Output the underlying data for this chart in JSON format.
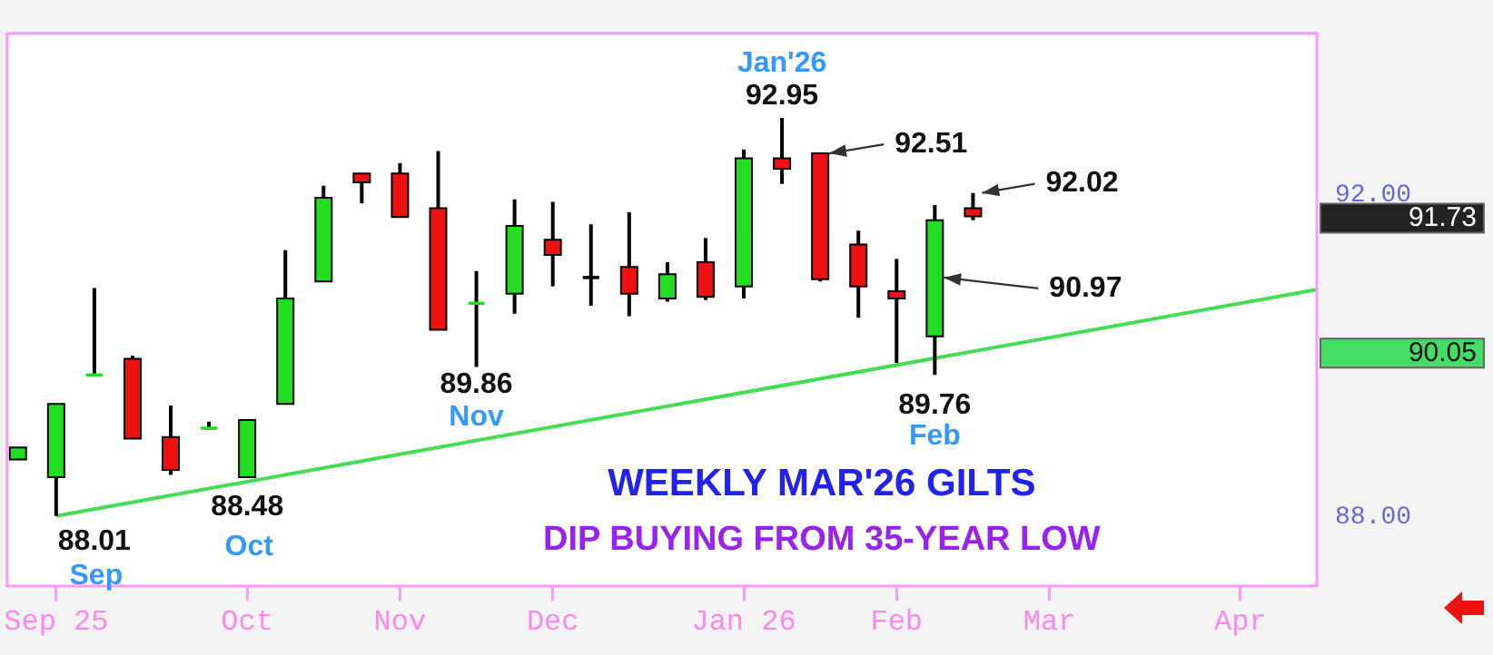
{
  "chart_data": {
    "type": "candlestick",
    "title": "WEEKLY MAR'26 GILTS",
    "subtitle": "DIP BUYING FROM 35-YEAR LOW",
    "x": [
      "2025-08-25",
      "2025-09-01",
      "2025-09-08",
      "2025-09-15",
      "2025-09-22",
      "2025-09-29",
      "2025-10-06",
      "2025-10-13",
      "2025-10-20",
      "2025-10-27",
      "2025-11-03",
      "2025-11-10",
      "2025-11-17",
      "2025-11-24",
      "2025-12-01",
      "2025-12-08",
      "2025-12-15",
      "2025-12-22",
      "2025-12-29",
      "2026-01-05",
      "2026-01-12",
      "2026-01-19",
      "2026-01-26",
      "2026-02-02",
      "2026-02-09",
      "2026-02-16"
    ],
    "ohlc": [
      [
        88.71,
        88.86,
        88.71,
        88.86
      ],
      [
        88.49,
        89.4,
        88.01,
        89.4
      ],
      [
        89.74,
        90.84,
        89.74,
        89.78
      ],
      [
        89.96,
        90.0,
        88.97,
        88.97
      ],
      [
        88.99,
        89.38,
        88.52,
        88.58
      ],
      [
        89.08,
        89.18,
        89.08,
        89.12
      ],
      [
        88.49,
        89.2,
        88.48,
        89.2
      ],
      [
        89.4,
        91.31,
        89.4,
        90.71
      ],
      [
        90.92,
        92.11,
        90.92,
        91.96
      ],
      [
        92.26,
        92.26,
        91.89,
        92.15
      ],
      [
        92.26,
        92.39,
        91.72,
        91.72
      ],
      [
        91.83,
        92.54,
        90.32,
        90.32
      ],
      [
        90.63,
        91.05,
        89.86,
        90.67
      ],
      [
        90.77,
        91.94,
        90.52,
        91.61
      ],
      [
        91.44,
        91.91,
        90.86,
        91.25
      ],
      [
        90.95,
        91.63,
        90.62,
        90.99
      ],
      [
        91.1,
        91.78,
        90.49,
        90.77
      ],
      [
        90.71,
        91.16,
        90.67,
        91.01
      ],
      [
        91.16,
        91.46,
        90.69,
        90.73
      ],
      [
        90.86,
        92.56,
        90.71,
        92.45
      ],
      [
        92.45,
        92.95,
        92.13,
        92.32
      ],
      [
        92.51,
        92.51,
        90.92,
        90.95
      ],
      [
        91.38,
        91.55,
        90.47,
        90.86
      ],
      [
        90.8,
        91.2,
        89.91,
        90.71
      ],
      [
        90.24,
        91.87,
        89.76,
        91.68
      ],
      [
        91.83,
        92.02,
        91.68,
        91.73
      ]
    ],
    "colors": [
      "#22dd22",
      "#22dd22",
      "#22dd22",
      "#ee1111",
      "#ee1111",
      "#22dd22",
      "#22dd22",
      "#22dd22",
      "#22dd22",
      "#ee1111",
      "#ee1111",
      "#ee1111",
      "#22dd22",
      "#22dd22",
      "#ee1111",
      "#000000",
      "#ee1111",
      "#22dd22",
      "#ee1111",
      "#22dd22",
      "#ee1111",
      "#ee1111",
      "#ee1111",
      "#ee1111",
      "#22dd22",
      "#ee1111"
    ],
    "series": [
      {
        "type": "line",
        "color": "#44dd55",
        "x": [
          "2025-09-01",
          "2026-04-20"
        ],
        "values": [
          88.01,
          90.82
        ]
      }
    ],
    "xlim": [
      "2025-08-23",
      "2026-04-20"
    ],
    "xticks": [
      {
        "value": "2025-09-01",
        "label": "Sep 25"
      },
      {
        "value": "2025-10-06",
        "label": "Oct"
      },
      {
        "value": "2025-11-03",
        "label": "Nov"
      },
      {
        "value": "2025-12-01",
        "label": "Dec"
      },
      {
        "value": "2026-01-05",
        "label": "Jan 26"
      },
      {
        "value": "2026-02-02",
        "label": "Feb"
      },
      {
        "value": "2026-03-02",
        "label": "Mar"
      },
      {
        "value": "2026-04-06",
        "label": "Apr"
      }
    ],
    "ylim": [
      87.14,
      94.0
    ],
    "yticks": [
      {
        "value": 88,
        "label": "88.00"
      },
      {
        "value": 92,
        "label": "92.00"
      }
    ],
    "annotations": [
      {
        "text": "88.01",
        "x": "2025-09-01",
        "y": 88.01
      },
      {
        "text": "Sep",
        "x": "2025-09-01",
        "y": 88.01
      },
      {
        "text": "88.48",
        "x": "2025-10-06",
        "y": 88.48
      },
      {
        "text": "Oct",
        "x": "2025-10-06",
        "y": 88.48
      },
      {
        "text": "89.86",
        "x": "2025-11-17",
        "y": 89.86
      },
      {
        "text": "Nov",
        "x": "2025-11-17",
        "y": 89.86
      },
      {
        "text": "Jan'26",
        "x": "2026-01-12",
        "y": 92.95
      },
      {
        "text": "92.95",
        "x": "2026-01-12",
        "y": 92.95
      },
      {
        "text": "92.51",
        "x": "2026-01-19",
        "y": 92.51
      },
      {
        "text": "92.02",
        "x": "2026-02-16",
        "y": 92.02
      },
      {
        "text": "90.97",
        "x": "2026-02-09",
        "y": 90.97
      },
      {
        "text": "89.76",
        "x": "2026-02-09",
        "y": 89.76
      },
      {
        "text": "Feb",
        "x": "2026-02-09",
        "y": 89.76
      },
      "91.73",
      "90.05"
    ],
    "grid": false,
    "legend": false
  }
}
